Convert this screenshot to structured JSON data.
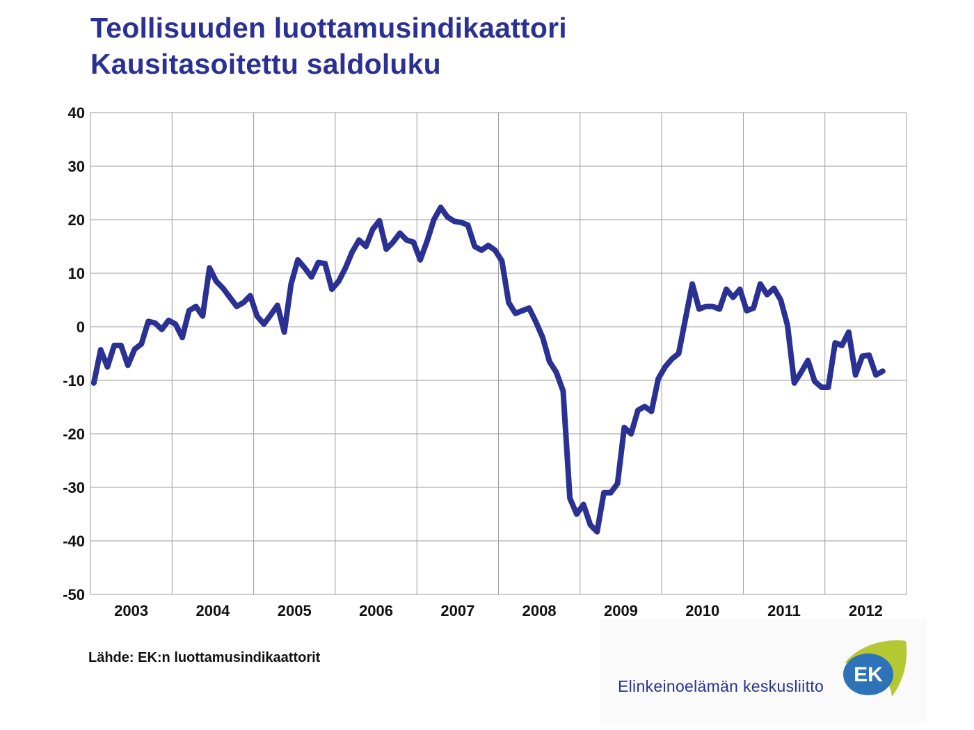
{
  "title": {
    "line1": "Teollisuuden luottamusindikaattori",
    "line2": "Kausitasoitettu saldoluku"
  },
  "source": "Lähde: EK:n luottamusindikaattorit",
  "organization": "Elinkeinoelämän keskusliitto",
  "logo_text": "EK",
  "colors": {
    "line": "#2b3192",
    "title": "#2b3192",
    "grid": "#9e9e9e",
    "logo_green": "#b4c832",
    "logo_blue": "#2e73b8"
  },
  "chart_data": {
    "type": "line",
    "title": "Teollisuuden luottamusindikaattori",
    "subtitle": "Kausitasoitettu saldoluku",
    "xlabel": "",
    "ylabel": "",
    "ylim": [
      -50,
      40
    ],
    "yticks": [
      40,
      30,
      20,
      10,
      0,
      -10,
      -20,
      -30,
      -40,
      -50
    ],
    "x_start": "2003-01",
    "x_end": "2012-12",
    "x_categories": [
      "2003",
      "2004",
      "2005",
      "2006",
      "2007",
      "2008",
      "2009",
      "2010",
      "2011",
      "2012"
    ],
    "grid": true,
    "legend": "none",
    "series": [
      {
        "x": [
          "2003-01",
          "2003-02",
          "2003-03",
          "2003-04",
          "2003-05",
          "2003-06",
          "2003-07",
          "2003-08",
          "2003-09",
          "2003-10",
          "2003-11",
          "2003-12",
          "2004-01",
          "2004-02",
          "2004-03",
          "2004-04",
          "2004-05",
          "2004-06",
          "2004-07",
          "2004-08",
          "2004-09",
          "2004-10",
          "2004-11",
          "2004-12",
          "2005-01",
          "2005-02",
          "2005-03",
          "2005-04",
          "2005-05",
          "2005-06",
          "2005-07",
          "2005-08",
          "2005-09",
          "2005-10",
          "2005-11",
          "2005-12",
          "2006-01",
          "2006-02",
          "2006-03",
          "2006-04",
          "2006-05",
          "2006-06",
          "2006-07",
          "2006-08",
          "2006-09",
          "2006-10",
          "2006-11",
          "2006-12",
          "2007-01",
          "2007-02",
          "2007-03",
          "2007-04",
          "2007-05",
          "2007-06",
          "2007-07",
          "2007-08",
          "2007-09",
          "2007-10",
          "2007-11",
          "2007-12",
          "2008-01",
          "2008-02",
          "2008-03",
          "2008-04",
          "2008-05",
          "2008-06",
          "2008-07",
          "2008-08",
          "2008-09",
          "2008-10",
          "2008-11",
          "2008-12",
          "2009-01",
          "2009-02",
          "2009-03",
          "2009-04",
          "2009-05",
          "2009-06",
          "2009-07",
          "2009-08",
          "2009-09",
          "2009-10",
          "2009-11",
          "2009-12",
          "2010-01",
          "2010-02",
          "2010-03",
          "2010-04",
          "2010-05",
          "2010-06",
          "2010-07",
          "2010-08",
          "2010-09",
          "2010-10",
          "2010-11",
          "2010-12",
          "2011-01",
          "2011-02",
          "2011-03",
          "2011-04",
          "2011-05",
          "2011-06",
          "2011-07",
          "2011-08",
          "2011-09",
          "2011-10",
          "2011-11",
          "2011-12",
          "2012-01",
          "2012-02",
          "2012-03",
          "2012-04",
          "2012-05",
          "2012-06",
          "2012-07",
          "2012-08",
          "2012-09",
          "2012-10",
          "2012-11",
          "2012-12"
        ],
        "values": [
          -10.5,
          -4.3,
          -7.5,
          -3.5,
          -3.5,
          -7.2,
          -4.2,
          -3.2,
          1.0,
          0.7,
          -0.5,
          1.2,
          0.5,
          -2.0,
          3.0,
          3.8,
          2.0,
          11.0,
          8.5,
          7.2,
          5.5,
          3.8,
          4.5,
          5.8,
          2.0,
          0.5,
          2.2,
          4.0,
          -1.0,
          8.0,
          12.5,
          11.0,
          9.3,
          12.0,
          11.8,
          7.0,
          8.5,
          11.0,
          14.0,
          16.2,
          15.0,
          18.2,
          19.8,
          14.5,
          15.8,
          17.5,
          16.2,
          15.8,
          12.5,
          16.0,
          20.0,
          22.3,
          20.5,
          19.7,
          19.5,
          19.0,
          15.0,
          14.3,
          15.2,
          14.3,
          12.3,
          4.5,
          2.5,
          3.0,
          3.5,
          0.9,
          -2.0,
          -6.5,
          -8.5,
          -12.0,
          -32.0,
          -35.0,
          -33.2,
          -37.0,
          -38.3,
          -31.0,
          -31.0,
          -29.3,
          -18.8,
          -20.0,
          -15.6,
          -14.9,
          -15.8,
          -9.7,
          -7.5,
          -6.0,
          -5.0,
          1.5,
          8.0,
          3.3,
          3.8,
          3.8,
          3.3,
          7.0,
          5.5,
          7.0,
          3.0,
          3.5,
          8.0,
          6.0,
          7.2,
          5.0,
          0.3,
          -10.5,
          -8.5,
          -6.3,
          -10.2,
          -11.3,
          -11.3,
          -3.0,
          -3.5,
          -1.0,
          -9.0,
          -5.5,
          -5.3,
          -9.0,
          -8.3,
          null,
          null,
          null
        ]
      }
    ]
  }
}
